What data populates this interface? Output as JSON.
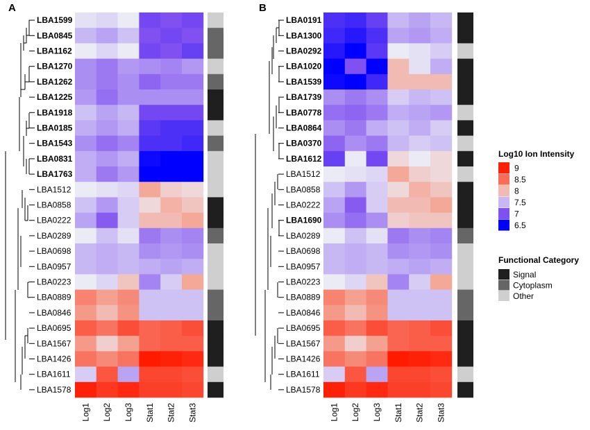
{
  "chart_data": [
    {
      "type": "heatmap",
      "panel_label": "A",
      "columns": [
        "Log1",
        "Log2",
        "Log3",
        "Stat1",
        "Stat2",
        "Stat3"
      ],
      "rows": [
        "LBA1599",
        "LBA0845",
        "LBA1162",
        "LBA1270",
        "LBA1262",
        "LBA1225",
        "LBA1918",
        "LBA0185",
        "LBA1543",
        "LBA0831",
        "LBA1763",
        "LBA1512",
        "LBA0858",
        "LBA0222",
        "LBA0289",
        "LBA0698",
        "LBA0957",
        "LBA0223",
        "LBA0889",
        "LBA0846",
        "LBA0695",
        "LBA1567",
        "LBA1426",
        "LBA1611",
        "LBA1578"
      ],
      "bold_rows": [
        "LBA1599",
        "LBA0845",
        "LBA1162",
        "LBA1270",
        "LBA1262",
        "LBA1225",
        "LBA1918",
        "LBA0185",
        "LBA1543",
        "LBA0831",
        "LBA1763"
      ],
      "values": [
        [
          7.7,
          7.65,
          7.75,
          6.95,
          7.0,
          6.95
        ],
        [
          7.5,
          7.4,
          7.55,
          7.0,
          6.95,
          7.0
        ],
        [
          7.75,
          7.65,
          7.75,
          6.95,
          7.0,
          6.9
        ],
        [
          7.3,
          7.2,
          7.35,
          7.3,
          7.25,
          7.35
        ],
        [
          7.3,
          7.2,
          7.3,
          7.1,
          7.2,
          7.2
        ],
        [
          7.35,
          7.15,
          7.3,
          7.3,
          7.3,
          7.3
        ],
        [
          7.55,
          7.4,
          7.5,
          6.95,
          6.95,
          6.95
        ],
        [
          7.45,
          7.35,
          7.45,
          6.85,
          6.8,
          6.8
        ],
        [
          7.3,
          7.15,
          7.25,
          6.8,
          6.8,
          6.75
        ],
        [
          7.45,
          7.35,
          7.45,
          6.55,
          6.5,
          6.45
        ],
        [
          7.45,
          7.2,
          7.35,
          6.5,
          6.45,
          6.4
        ],
        [
          7.75,
          7.7,
          7.65,
          8.1,
          7.9,
          7.85
        ],
        [
          7.55,
          7.35,
          7.6,
          7.85,
          8.05,
          7.95
        ],
        [
          7.4,
          7.05,
          7.6,
          8.0,
          8.0,
          8.1
        ],
        [
          7.75,
          7.55,
          7.7,
          7.2,
          7.3,
          7.25
        ],
        [
          7.5,
          7.45,
          7.5,
          7.3,
          7.35,
          7.3
        ],
        [
          7.5,
          7.45,
          7.5,
          7.45,
          7.4,
          7.45
        ],
        [
          7.75,
          7.65,
          7.95,
          7.25,
          7.6,
          8.1
        ],
        [
          8.35,
          8.15,
          8.3,
          7.55,
          7.55,
          7.55
        ],
        [
          8.2,
          8.0,
          8.25,
          7.55,
          7.55,
          7.55
        ],
        [
          8.6,
          8.45,
          8.7,
          8.55,
          8.6,
          8.7
        ],
        [
          8.2,
          7.9,
          8.15,
          8.55,
          8.6,
          8.6
        ],
        [
          8.45,
          8.3,
          8.45,
          9.05,
          9.0,
          8.95
        ],
        [
          7.6,
          8.65,
          7.4,
          8.75,
          8.75,
          8.7
        ],
        [
          9.0,
          8.85,
          8.95,
          8.8,
          8.8,
          8.75
        ]
      ],
      "functional_category": [
        "Other",
        "Cytoplasm",
        "Cytoplasm",
        "Other",
        "Cytoplasm",
        "Signal",
        "Signal",
        "Other",
        "Cytoplasm",
        "Other",
        "Other",
        "Other",
        "Signal",
        "Signal",
        "Cytoplasm",
        "Other",
        "Other",
        "Other",
        "Cytoplasm",
        "Cytoplasm",
        "Signal",
        "Signal",
        "Signal",
        "Other",
        "Signal"
      ]
    },
    {
      "type": "heatmap",
      "panel_label": "B",
      "columns": [
        "Log1",
        "Log2",
        "Log3",
        "Stat1",
        "Stat2",
        "Stat3"
      ],
      "rows": [
        "LBA0191",
        "LBA1300",
        "LBA0292",
        "LBA1020",
        "LBA1539",
        "LBA1739",
        "LBA0778",
        "LBA0864",
        "LBA0370",
        "LBA1612",
        "LBA1512",
        "LBA0858",
        "LBA0222",
        "LBA1690",
        "LBA0289",
        "LBA0698",
        "LBA0957",
        "LBA0223",
        "LBA0889",
        "LBA0846",
        "LBA0695",
        "LBA1567",
        "LBA1426",
        "LBA1611",
        "LBA1578"
      ],
      "bold_rows": [
        "LBA0191",
        "LBA1300",
        "LBA0292",
        "LBA1020",
        "LBA1539",
        "LBA1739",
        "LBA0778",
        "LBA0864",
        "LBA0370",
        "LBA1612",
        "LBA1690"
      ],
      "values": [
        [
          6.8,
          6.75,
          6.9,
          7.5,
          7.4,
          7.5
        ],
        [
          6.75,
          6.65,
          6.8,
          7.4,
          7.35,
          7.45
        ],
        [
          6.65,
          6.45,
          6.85,
          7.75,
          7.7,
          7.6
        ],
        [
          6.45,
          7.0,
          6.45,
          8.0,
          7.7,
          7.45
        ],
        [
          6.55,
          6.5,
          6.75,
          8.0,
          8.0,
          8.0
        ],
        [
          7.3,
          7.2,
          7.3,
          7.6,
          7.5,
          7.55
        ],
        [
          7.15,
          7.1,
          7.2,
          7.45,
          7.4,
          7.35
        ],
        [
          7.3,
          7.2,
          7.45,
          7.55,
          7.45,
          7.6
        ],
        [
          7.1,
          7.3,
          7.2,
          7.5,
          7.6,
          7.55
        ],
        [
          6.9,
          7.75,
          6.95,
          7.85,
          7.75,
          7.85
        ],
        [
          7.75,
          7.7,
          7.65,
          8.1,
          7.9,
          7.85
        ],
        [
          7.55,
          7.35,
          7.6,
          7.85,
          8.05,
          7.95
        ],
        [
          7.4,
          7.05,
          7.6,
          8.0,
          8.0,
          8.1
        ],
        [
          7.3,
          7.15,
          7.3,
          7.9,
          7.95,
          7.95
        ],
        [
          7.75,
          7.55,
          7.7,
          7.2,
          7.3,
          7.25
        ],
        [
          7.5,
          7.45,
          7.5,
          7.3,
          7.35,
          7.3
        ],
        [
          7.5,
          7.45,
          7.5,
          7.45,
          7.4,
          7.45
        ],
        [
          7.75,
          7.65,
          7.95,
          7.25,
          7.6,
          8.1
        ],
        [
          8.35,
          8.15,
          8.3,
          7.55,
          7.55,
          7.55
        ],
        [
          8.2,
          8.0,
          8.25,
          7.55,
          7.55,
          7.55
        ],
        [
          8.6,
          8.45,
          8.7,
          8.55,
          8.6,
          8.7
        ],
        [
          8.2,
          7.9,
          8.15,
          8.55,
          8.6,
          8.6
        ],
        [
          8.45,
          8.3,
          8.45,
          9.05,
          9.0,
          8.95
        ],
        [
          7.6,
          8.65,
          7.4,
          8.75,
          8.75,
          8.7
        ],
        [
          9.0,
          8.85,
          8.95,
          8.8,
          8.8,
          8.75
        ]
      ],
      "functional_category": [
        "Signal",
        "Signal",
        "Other",
        "Signal",
        "Signal",
        "Signal",
        "Other",
        "Signal",
        "Other",
        "Signal",
        "Other",
        "Signal",
        "Signal",
        "Signal",
        "Cytoplasm",
        "Other",
        "Other",
        "Other",
        "Cytoplasm",
        "Cytoplasm",
        "Signal",
        "Signal",
        "Signal",
        "Other",
        "Signal"
      ]
    }
  ],
  "legend_intensity": {
    "title": "Log10 Ion Intensity",
    "entries": [
      {
        "label": "9",
        "value": 9.0
      },
      {
        "label": "8.5",
        "value": 8.5
      },
      {
        "label": "8",
        "value": 8.0
      },
      {
        "label": "7.5",
        "value": 7.5
      },
      {
        "label": "7",
        "value": 7.0
      },
      {
        "label": "6.5",
        "value": 6.5
      }
    ]
  },
  "legend_category": {
    "title": "Functional Category",
    "entries": [
      {
        "label": "Signal",
        "color": "#1f1f1f"
      },
      {
        "label": "Cytoplasm",
        "color": "#666666"
      },
      {
        "label": "Other",
        "color": "#cfcfcf"
      }
    ]
  },
  "scale_colors": {
    "low": "#0000ff",
    "mid_low": "#8050f0",
    "mid": "#ebebf5",
    "high_mid": "#f4a898",
    "high": "#ff1a00"
  }
}
